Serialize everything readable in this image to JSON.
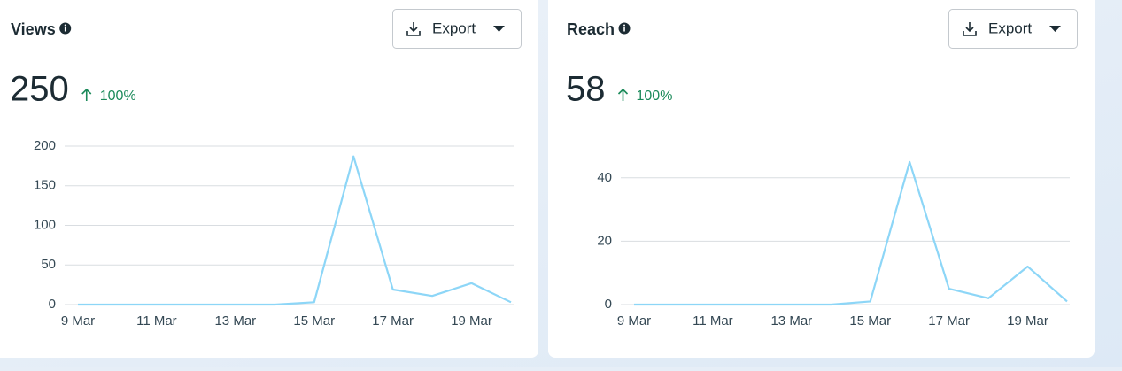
{
  "chart_data": [
    {
      "type": "line",
      "title": "Views",
      "total": 250,
      "change": "100%",
      "button": "Export",
      "categories": [
        "9 Mar",
        null,
        "11 Mar",
        null,
        "13 Mar",
        null,
        "15 Mar",
        null,
        "17 Mar",
        null,
        "19 Mar",
        null
      ],
      "values": [
        0,
        0,
        0,
        0,
        0,
        0,
        3,
        187,
        19,
        11,
        27,
        3
      ],
      "color": "#8dd6f7",
      "ylim": [
        0,
        200
      ],
      "yticks": [
        0,
        50,
        100,
        150,
        200
      ],
      "grid": true
    },
    {
      "type": "line",
      "title": "Reach",
      "total": 58,
      "change": "100%",
      "button": "Export",
      "categories": [
        "9 Mar",
        null,
        "11 Mar",
        null,
        "13 Mar",
        null,
        "15 Mar",
        null,
        "17 Mar",
        null,
        "19 Mar",
        null
      ],
      "values": [
        0,
        0,
        0,
        0,
        0,
        0,
        1,
        45,
        5,
        2,
        12,
        1
      ],
      "color": "#8dd6f7",
      "ylim": [
        0,
        50
      ],
      "yticks": [
        0,
        20,
        40
      ],
      "grid": true
    }
  ]
}
